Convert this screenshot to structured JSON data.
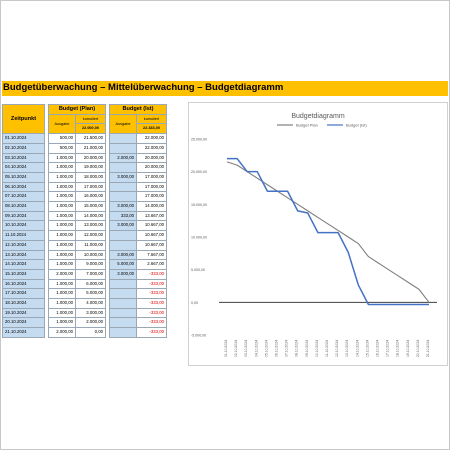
{
  "sheet": {
    "title": "Budgetüberwachung – Mittelüberwachung – Budgetdiagramm"
  },
  "table": {
    "col_zeitpunkt": "Zeitpunkt",
    "group_plan": "Budget (Plan)",
    "group_ist": "Budget (Ist)",
    "sub_ausgabe": "Ausgabe",
    "sub_kumuliert": "kumuliert",
    "plan_total": "22.000,00",
    "ist_total": "22.333,00",
    "rows": [
      {
        "date": "01.10.2024",
        "plan_ausgabe": "500,00",
        "plan_kum": "21.500,00",
        "ist_ausgabe": "",
        "ist_kum": "22.000,00"
      },
      {
        "date": "02.10.2024",
        "plan_ausgabe": "500,00",
        "plan_kum": "21.000,00",
        "ist_ausgabe": "",
        "ist_kum": "22.000,00"
      },
      {
        "date": "03.10.2024",
        "plan_ausgabe": "1.000,00",
        "plan_kum": "20.000,00",
        "ist_ausgabe": "2.000,00",
        "ist_kum": "20.000,00"
      },
      {
        "date": "04.10.2024",
        "plan_ausgabe": "1.000,00",
        "plan_kum": "19.000,00",
        "ist_ausgabe": "",
        "ist_kum": "20.000,00"
      },
      {
        "date": "05.10.2024",
        "plan_ausgabe": "1.000,00",
        "plan_kum": "18.000,00",
        "ist_ausgabe": "3.000,00",
        "ist_kum": "17.000,00"
      },
      {
        "date": "06.10.2024",
        "plan_ausgabe": "1.000,00",
        "plan_kum": "17.000,00",
        "ist_ausgabe": "",
        "ist_kum": "17.000,00"
      },
      {
        "date": "07.10.2024",
        "plan_ausgabe": "1.000,00",
        "plan_kum": "16.000,00",
        "ist_ausgabe": "",
        "ist_kum": "17.000,00"
      },
      {
        "date": "08.10.2024",
        "plan_ausgabe": "1.000,00",
        "plan_kum": "15.000,00",
        "ist_ausgabe": "3.000,00",
        "ist_kum": "14.000,00"
      },
      {
        "date": "09.10.2024",
        "plan_ausgabe": "1.000,00",
        "plan_kum": "14.000,00",
        "ist_ausgabe": "333,00",
        "ist_kum": "13.667,00"
      },
      {
        "date": "10.10.2024",
        "plan_ausgabe": "1.000,00",
        "plan_kum": "13.000,00",
        "ist_ausgabe": "3.000,00",
        "ist_kum": "10.667,00"
      },
      {
        "date": "11.10.2024",
        "plan_ausgabe": "1.000,00",
        "plan_kum": "12.000,00",
        "ist_ausgabe": "",
        "ist_kum": "10.667,00"
      },
      {
        "date": "12.10.2024",
        "plan_ausgabe": "1.000,00",
        "plan_kum": "11.000,00",
        "ist_ausgabe": "",
        "ist_kum": "10.667,00"
      },
      {
        "date": "13.10.2024",
        "plan_ausgabe": "1.000,00",
        "plan_kum": "10.000,00",
        "ist_ausgabe": "3.000,00",
        "ist_kum": "7.667,00"
      },
      {
        "date": "14.10.2024",
        "plan_ausgabe": "1.000,00",
        "plan_kum": "9.000,00",
        "ist_ausgabe": "5.000,00",
        "ist_kum": "2.667,00"
      },
      {
        "date": "15.10.2024",
        "plan_ausgabe": "2.000,00",
        "plan_kum": "7.000,00",
        "ist_ausgabe": "3.000,00",
        "ist_kum": "-333,00"
      },
      {
        "date": "16.10.2024",
        "plan_ausgabe": "1.000,00",
        "plan_kum": "6.000,00",
        "ist_ausgabe": "",
        "ist_kum": "-333,00"
      },
      {
        "date": "17.10.2024",
        "plan_ausgabe": "1.000,00",
        "plan_kum": "5.000,00",
        "ist_ausgabe": "",
        "ist_kum": "-333,00"
      },
      {
        "date": "18.10.2024",
        "plan_ausgabe": "1.000,00",
        "plan_kum": "4.000,00",
        "ist_ausgabe": "",
        "ist_kum": "-333,00"
      },
      {
        "date": "19.10.2024",
        "plan_ausgabe": "1.000,00",
        "plan_kum": "3.000,00",
        "ist_ausgabe": "",
        "ist_kum": "-333,00"
      },
      {
        "date": "20.10.2024",
        "plan_ausgabe": "1.000,00",
        "plan_kum": "2.000,00",
        "ist_ausgabe": "",
        "ist_kum": "-333,00"
      },
      {
        "date": "21.10.2024",
        "plan_ausgabe": "2.000,00",
        "plan_kum": "0,00",
        "ist_ausgabe": "",
        "ist_kum": "-333,00"
      }
    ]
  },
  "colors": {
    "header": "#ffc000",
    "row_fill": "#c5dbf0",
    "negative": "#e00000",
    "plan_line": "#7f7f7f",
    "ist_line": "#4472c4"
  },
  "chart_data": {
    "type": "line",
    "title": "Budgetdiagramm",
    "legend_position": "top",
    "grid": false,
    "ylim": [
      -5000,
      25000
    ],
    "y_ticks": [
      "25.000,00",
      "20.000,00",
      "15.000,00",
      "10.000,00",
      "5.000,00",
      "0,00",
      "-5.000,00"
    ],
    "y_tick_values": [
      25000,
      20000,
      15000,
      10000,
      5000,
      0,
      -5000
    ],
    "x": [
      "01.10.2024",
      "02.10.2024",
      "03.10.2024",
      "04.10.2024",
      "05.10.2024",
      "06.10.2024",
      "07.10.2024",
      "08.10.2024",
      "09.10.2024",
      "10.10.2024",
      "11.10.2024",
      "12.10.2024",
      "13.10.2024",
      "14.10.2024",
      "15.10.2024",
      "16.10.2024",
      "17.10.2024",
      "18.10.2024",
      "19.10.2024",
      "20.10.2024",
      "21.10.2024"
    ],
    "series": [
      {
        "name": "Budget Plan",
        "values": [
          21500,
          21000,
          20000,
          19000,
          18000,
          17000,
          16000,
          15000,
          14000,
          13000,
          12000,
          11000,
          10000,
          9000,
          7000,
          6000,
          5000,
          4000,
          3000,
          2000,
          0
        ]
      },
      {
        "name": "Budget (Ist)",
        "values": [
          22000,
          22000,
          20000,
          20000,
          17000,
          17000,
          17000,
          14000,
          13667,
          10667,
          10667,
          10667,
          7667,
          2667,
          -333,
          -333,
          -333,
          -333,
          -333,
          -333,
          -333
        ]
      }
    ]
  }
}
